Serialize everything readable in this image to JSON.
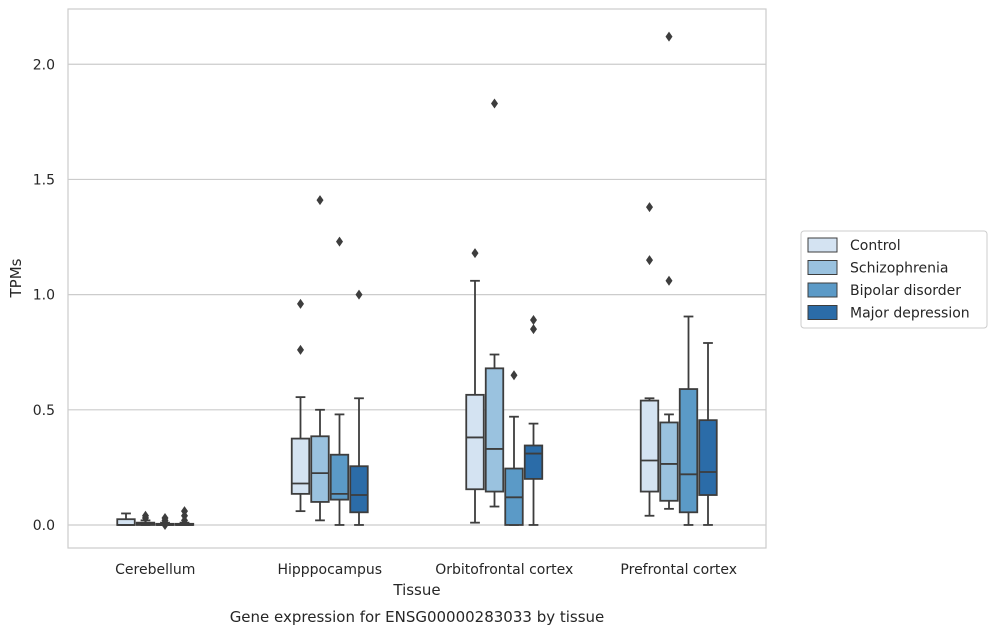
{
  "chart_data": {
    "type": "box",
    "caption": "Gene expression for ENSG00000283033 by tissue",
    "xlabel": "Tissue",
    "ylabel": "TPMs",
    "ylim": [
      -0.1,
      2.24
    ],
    "yticks": [
      "0.0",
      "0.5",
      "1.0",
      "1.5",
      "2.0"
    ],
    "grid": "horizontal",
    "legend_position": "right",
    "categories": [
      "Cerebellum",
      "Hipppocampus",
      "Orbitofrontal cortex",
      "Prefrontal cortex"
    ],
    "series": [
      {
        "name": "Control",
        "color": "#d4e3f2",
        "boxes": [
          {
            "whisker_low": 0.0,
            "q1": 0.0,
            "median": 0.0,
            "q3": 0.025,
            "whisker_high": 0.05,
            "outliers": []
          },
          {
            "whisker_low": 0.06,
            "q1": 0.135,
            "median": 0.18,
            "q3": 0.375,
            "whisker_high": 0.555,
            "outliers": [
              0.76,
              0.96
            ]
          },
          {
            "whisker_low": 0.01,
            "q1": 0.155,
            "median": 0.38,
            "q3": 0.565,
            "whisker_high": 1.06,
            "outliers": [
              1.18
            ]
          },
          {
            "whisker_low": 0.04,
            "q1": 0.145,
            "median": 0.28,
            "q3": 0.54,
            "whisker_high": 0.55,
            "outliers": [
              1.15,
              1.38
            ]
          }
        ]
      },
      {
        "name": "Schizophrenia",
        "color": "#9ac2df",
        "boxes": [
          {
            "whisker_low": 0.0,
            "q1": 0.0,
            "median": 0.003,
            "q3": 0.01,
            "whisker_high": 0.02,
            "outliers": [
              0.03,
              0.04
            ]
          },
          {
            "whisker_low": 0.02,
            "q1": 0.1,
            "median": 0.225,
            "q3": 0.385,
            "whisker_high": 0.5,
            "outliers": [
              1.41
            ]
          },
          {
            "whisker_low": 0.08,
            "q1": 0.145,
            "median": 0.33,
            "q3": 0.68,
            "whisker_high": 0.74,
            "outliers": [
              1.83
            ]
          },
          {
            "whisker_low": 0.07,
            "q1": 0.105,
            "median": 0.265,
            "q3": 0.445,
            "whisker_high": 0.48,
            "outliers": [
              1.06,
              2.12
            ]
          }
        ]
      },
      {
        "name": "Bipolar disorder",
        "color": "#5b9ac7",
        "boxes": [
          {
            "whisker_low": 0.0,
            "q1": 0.0,
            "median": 0.0,
            "q3": 0.005,
            "whisker_high": 0.01,
            "outliers": [
              0.0,
              0.01,
              0.02,
              0.03
            ]
          },
          {
            "whisker_low": 0.0,
            "q1": 0.11,
            "median": 0.135,
            "q3": 0.305,
            "whisker_high": 0.48,
            "outliers": [
              1.23
            ]
          },
          {
            "whisker_low": 0.0,
            "q1": 0.0,
            "median": 0.12,
            "q3": 0.245,
            "whisker_high": 0.47,
            "outliers": [
              0.65
            ]
          },
          {
            "whisker_low": 0.0,
            "q1": 0.055,
            "median": 0.22,
            "q3": 0.59,
            "whisker_high": 0.905,
            "outliers": []
          }
        ]
      },
      {
        "name": "Major depression",
        "color": "#2b6ca8",
        "boxes": [
          {
            "whisker_low": 0.0,
            "q1": 0.0,
            "median": 0.0,
            "q3": 0.005,
            "whisker_high": 0.01,
            "outliers": [
              0.02,
              0.04,
              0.06
            ]
          },
          {
            "whisker_low": 0.0,
            "q1": 0.055,
            "median": 0.13,
            "q3": 0.255,
            "whisker_high": 0.55,
            "outliers": [
              1.0
            ]
          },
          {
            "whisker_low": 0.0,
            "q1": 0.2,
            "median": 0.31,
            "q3": 0.345,
            "whisker_high": 0.44,
            "outliers": [
              0.85,
              0.89
            ]
          },
          {
            "whisker_low": 0.0,
            "q1": 0.13,
            "median": 0.23,
            "q3": 0.455,
            "whisker_high": 0.79,
            "outliers": []
          }
        ]
      }
    ]
  }
}
